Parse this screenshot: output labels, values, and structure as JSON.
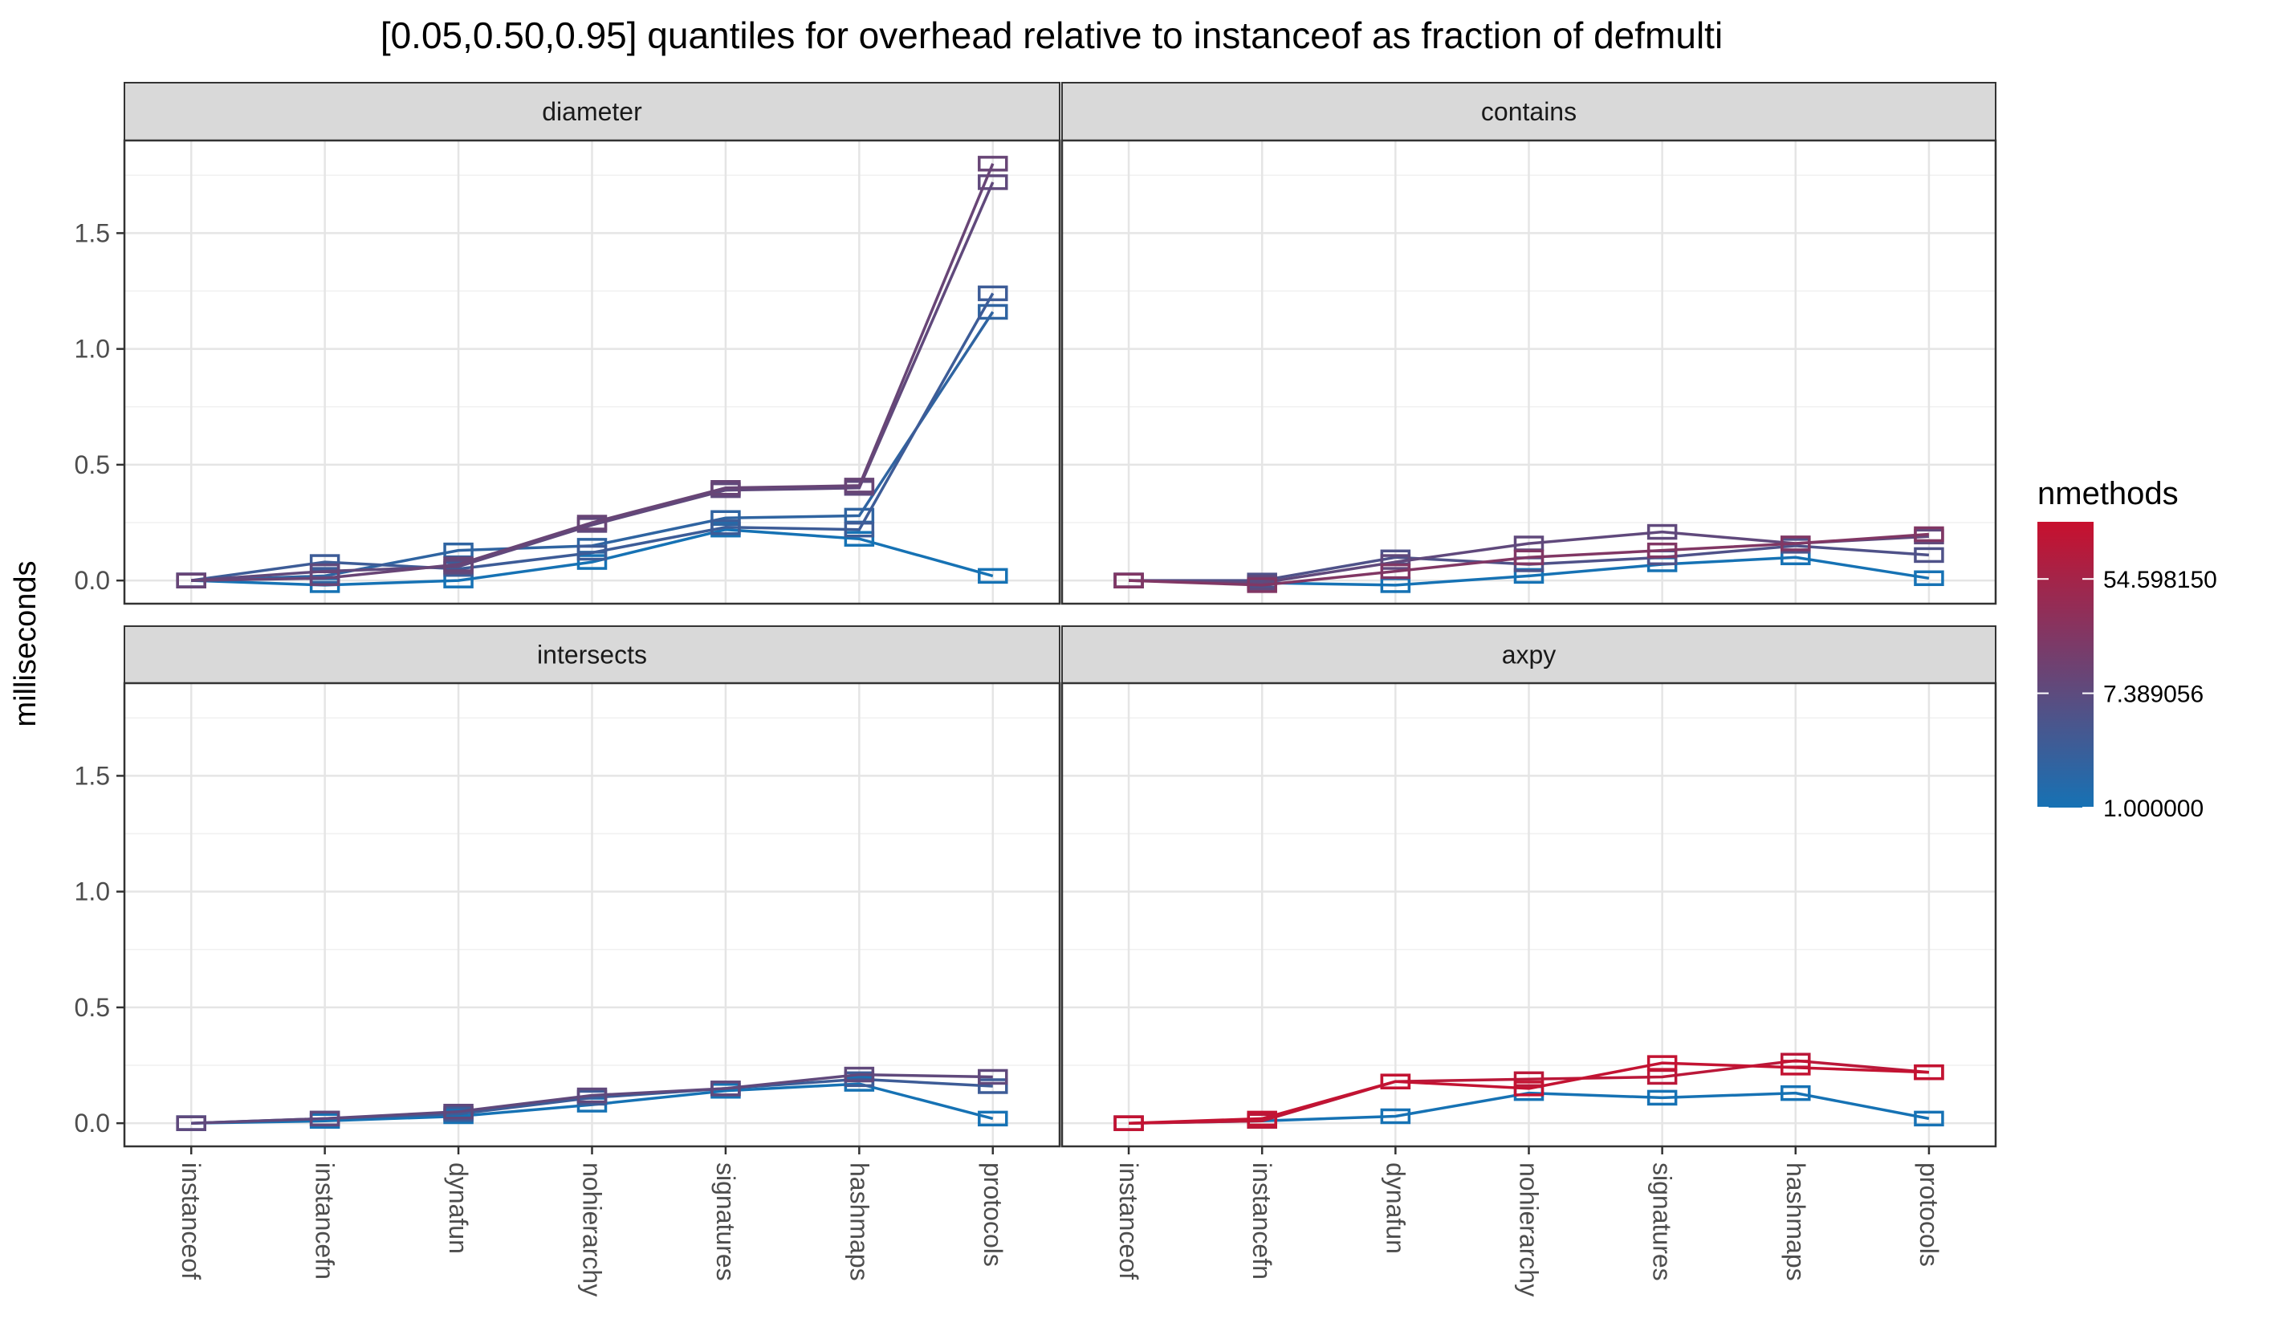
{
  "chart_data": {
    "type": "line",
    "title": "[0.05,0.50,0.95] quantiles for overhead relative to instanceof as fraction of defmulti",
    "xlabel": "",
    "ylabel": "milliseconds",
    "categories": [
      "instanceof",
      "instancefn",
      "dynafun",
      "nohierarchy",
      "signatures",
      "hashmaps",
      "protocols"
    ],
    "ylim": [
      -0.1,
      1.9
    ],
    "yticks": [
      "0.0",
      "0.5",
      "1.0",
      "1.5"
    ],
    "ytick_values": [
      0,
      0.5,
      1.0,
      1.5
    ],
    "grid": true,
    "legend": {
      "title": "nmethods",
      "position": "right",
      "labels": [
        "54.598150",
        "7.389056",
        "1.000000"
      ],
      "label_values": [
        54.59815,
        7.389056,
        1.0
      ],
      "range": [
        1.0,
        148.4132
      ],
      "color_low": "#1672B4",
      "color_high": "#C8102E"
    },
    "panels": [
      {
        "name": "diameter",
        "series": [
          {
            "nmethods": 1,
            "values": [
              0,
              -0.02,
              0.0,
              0.08,
              0.22,
              0.18,
              0.02
            ]
          },
          {
            "nmethods": 2,
            "values": [
              0,
              0.02,
              0.13,
              0.15,
              0.27,
              0.28,
              1.16
            ]
          },
          {
            "nmethods": 3,
            "values": [
              0,
              0.08,
              0.05,
              0.12,
              0.23,
              0.22,
              1.24
            ]
          },
          {
            "nmethods": 8,
            "values": [
              0,
              0.04,
              0.06,
              0.24,
              0.39,
              0.4,
              1.72
            ]
          },
          {
            "nmethods": 10,
            "values": [
              0,
              0.01,
              0.07,
              0.25,
              0.4,
              0.41,
              1.8
            ]
          }
        ]
      },
      {
        "name": "contains",
        "series": [
          {
            "nmethods": 1,
            "values": [
              0,
              -0.01,
              -0.02,
              0.02,
              0.07,
              0.1,
              0.01
            ]
          },
          {
            "nmethods": 5,
            "values": [
              0,
              0.0,
              0.1,
              0.07,
              0.1,
              0.15,
              0.11
            ]
          },
          {
            "nmethods": 8,
            "values": [
              0,
              -0.01,
              0.08,
              0.16,
              0.21,
              0.16,
              0.19
            ]
          },
          {
            "nmethods": 20,
            "values": [
              0,
              -0.02,
              0.04,
              0.1,
              0.13,
              0.16,
              0.2
            ]
          }
        ]
      },
      {
        "name": "intersects",
        "series": [
          {
            "nmethods": 1,
            "values": [
              0,
              0.01,
              0.03,
              0.08,
              0.14,
              0.17,
              0.02
            ]
          },
          {
            "nmethods": 3,
            "values": [
              0,
              0.02,
              0.04,
              0.11,
              0.15,
              0.19,
              0.16
            ]
          },
          {
            "nmethods": 8,
            "values": [
              0,
              0.02,
              0.05,
              0.12,
              0.15,
              0.21,
              0.2
            ]
          }
        ]
      },
      {
        "name": "axpy",
        "series": [
          {
            "nmethods": 1,
            "values": [
              0,
              0.01,
              0.03,
              0.13,
              0.11,
              0.13,
              0.02
            ]
          },
          {
            "nmethods": 100,
            "values": [
              0,
              0.01,
              0.18,
              0.19,
              0.2,
              0.27,
              0.22
            ]
          },
          {
            "nmethods": 130,
            "values": [
              0,
              0.02,
              0.18,
              0.15,
              0.26,
              0.24,
              0.22
            ]
          }
        ]
      }
    ]
  }
}
